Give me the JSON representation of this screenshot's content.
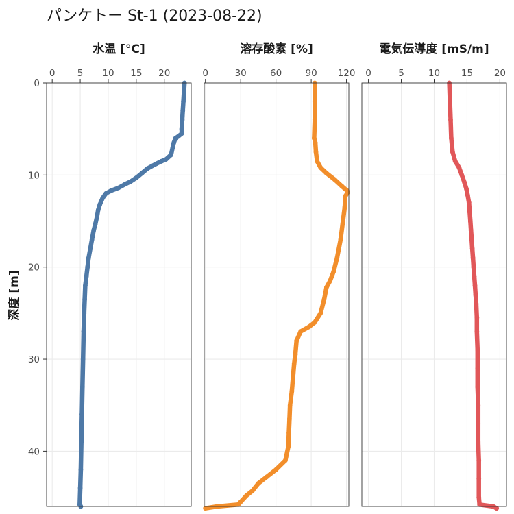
{
  "title": "パンケトー St-1 (2023-08-22)",
  "chart_data": {
    "type": "line",
    "y": {
      "label": "深度 [m]",
      "range": [
        0,
        46
      ],
      "reversed": true,
      "ticks": [
        0,
        10,
        20,
        30,
        40
      ]
    },
    "grid": true,
    "panels": [
      {
        "id": "temp",
        "title": "水温 [°C]",
        "x_range": [
          -1,
          24.8
        ],
        "ticks": [
          0,
          5,
          10,
          15,
          20
        ],
        "color": "#4e79a7",
        "points": [
          [
            23.6,
            0
          ],
          [
            23.5,
            1
          ],
          [
            23.4,
            2
          ],
          [
            23.3,
            3
          ],
          [
            23.2,
            4
          ],
          [
            23.1,
            5
          ],
          [
            23.1,
            5.5
          ],
          [
            22.5,
            5.8
          ],
          [
            22.0,
            6.0
          ],
          [
            21.7,
            6.5
          ],
          [
            21.5,
            7
          ],
          [
            21.2,
            7.8
          ],
          [
            20.3,
            8.3
          ],
          [
            19.5,
            8.5
          ],
          [
            18.5,
            8.8
          ],
          [
            17.0,
            9.3
          ],
          [
            16.0,
            9.8
          ],
          [
            15.0,
            10.3
          ],
          [
            14.0,
            10.7
          ],
          [
            13.0,
            11.0
          ],
          [
            11.8,
            11.4
          ],
          [
            10.5,
            11.7
          ],
          [
            9.6,
            12.0
          ],
          [
            9.0,
            12.5
          ],
          [
            8.5,
            13.2
          ],
          [
            8.2,
            13.8
          ],
          [
            8.0,
            14.5
          ],
          [
            7.7,
            15.3
          ],
          [
            7.4,
            16.0
          ],
          [
            7.1,
            17.0
          ],
          [
            6.8,
            18.0
          ],
          [
            6.5,
            19.0
          ],
          [
            6.3,
            20.0
          ],
          [
            6.1,
            21.0
          ],
          [
            5.9,
            22.0
          ],
          [
            5.8,
            23.5
          ],
          [
            5.7,
            25.0
          ],
          [
            5.6,
            27.0
          ],
          [
            5.5,
            30.0
          ],
          [
            5.4,
            33.0
          ],
          [
            5.3,
            36.0
          ],
          [
            5.2,
            39.0
          ],
          [
            5.1,
            42.0
          ],
          [
            5.0,
            44.0
          ],
          [
            4.9,
            45.8
          ],
          [
            5.1,
            46.0
          ]
        ]
      },
      {
        "id": "do",
        "title": "溶存酸素 [%]",
        "x_range": [
          -1,
          122
        ],
        "ticks": [
          0,
          30,
          60,
          90,
          120
        ],
        "color": "#f28e2b",
        "points": [
          [
            93,
            0
          ],
          [
            93,
            2
          ],
          [
            93,
            4
          ],
          [
            92.5,
            6
          ],
          [
            93.5,
            6.5
          ],
          [
            94,
            7.5
          ],
          [
            95,
            8.5
          ],
          [
            98,
            9.2
          ],
          [
            103,
            9.8
          ],
          [
            110,
            10.5
          ],
          [
            116,
            11.2
          ],
          [
            120.5,
            11.7
          ],
          [
            121,
            11.9
          ],
          [
            119,
            12.3
          ],
          [
            118.5,
            13.5
          ],
          [
            117,
            15
          ],
          [
            115,
            17
          ],
          [
            112,
            19
          ],
          [
            109,
            20.5
          ],
          [
            106,
            21.5
          ],
          [
            103,
            22.2
          ],
          [
            101,
            23.5
          ],
          [
            98,
            25.0
          ],
          [
            93,
            26.0
          ],
          [
            88,
            26.5
          ],
          [
            81,
            27.0
          ],
          [
            77.5,
            28.0
          ],
          [
            76.5,
            29.5
          ],
          [
            75.5,
            30.5
          ],
          [
            74.5,
            32.0
          ],
          [
            73.5,
            33.5
          ],
          [
            72,
            35.0
          ],
          [
            71.5,
            36.5
          ],
          [
            71,
            38.0
          ],
          [
            70.5,
            39.5
          ],
          [
            68,
            41.0
          ],
          [
            60,
            42.0
          ],
          [
            52,
            42.8
          ],
          [
            45,
            43.5
          ],
          [
            40,
            44.3
          ],
          [
            35,
            44.8
          ],
          [
            30,
            45.5
          ],
          [
            28,
            45.8
          ],
          [
            10,
            46.0
          ],
          [
            0,
            46.2
          ]
        ]
      },
      {
        "id": "ec",
        "title": "電気伝導度 [mS/m]",
        "x_range": [
          -1,
          21
        ],
        "ticks": [
          0,
          5,
          10,
          15,
          20
        ],
        "color": "#e15759",
        "points": [
          [
            12.3,
            0
          ],
          [
            12.4,
            2
          ],
          [
            12.5,
            4
          ],
          [
            12.6,
            6
          ],
          [
            12.8,
            7.5
          ],
          [
            13.2,
            8.5
          ],
          [
            13.8,
            9.2
          ],
          [
            14.2,
            10.0
          ],
          [
            14.6,
            10.8
          ],
          [
            14.9,
            11.5
          ],
          [
            15.1,
            12.2
          ],
          [
            15.3,
            13.0
          ],
          [
            15.4,
            14.0
          ],
          [
            15.5,
            15.0
          ],
          [
            15.6,
            16.0
          ],
          [
            15.7,
            17.0
          ],
          [
            15.8,
            18.0
          ],
          [
            15.9,
            19.0
          ],
          [
            16.0,
            20.0
          ],
          [
            16.1,
            21.0
          ],
          [
            16.2,
            22.0
          ],
          [
            16.3,
            23.0
          ],
          [
            16.4,
            24.0
          ],
          [
            16.5,
            25.5
          ],
          [
            16.5,
            27.0
          ],
          [
            16.6,
            29.0
          ],
          [
            16.6,
            31.0
          ],
          [
            16.6,
            33.0
          ],
          [
            16.7,
            35.0
          ],
          [
            16.7,
            37.0
          ],
          [
            16.7,
            39.0
          ],
          [
            16.8,
            41.0
          ],
          [
            16.8,
            43.0
          ],
          [
            16.8,
            45.0
          ],
          [
            16.9,
            45.8
          ],
          [
            19.0,
            46.0
          ],
          [
            19.5,
            46.2
          ]
        ]
      }
    ]
  }
}
